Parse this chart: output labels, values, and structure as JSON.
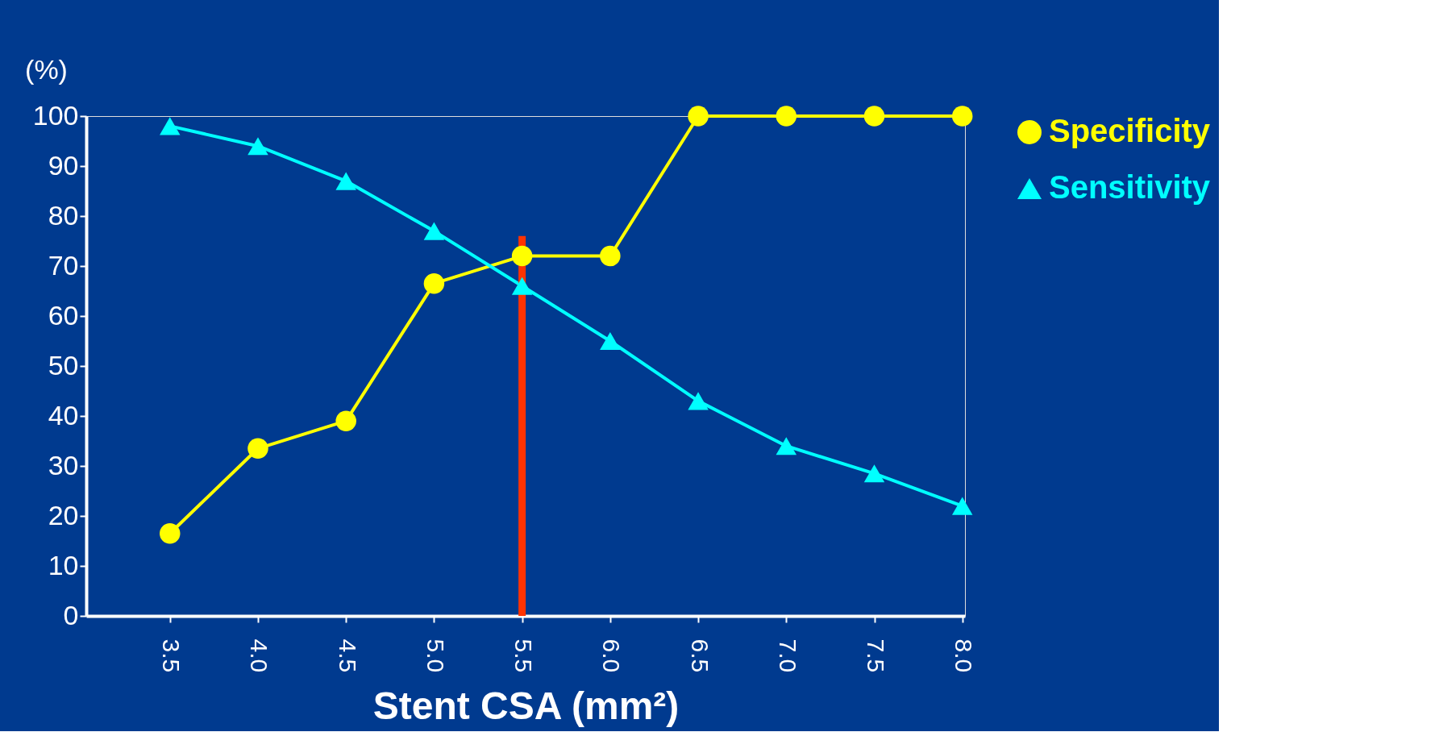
{
  "chart_data": {
    "type": "line",
    "xlabel": "Stent CSA (mm²)",
    "ylabel": "(%)",
    "categories": [
      "3.5",
      "4.0",
      "4.5",
      "5.0",
      "5.5",
      "6.0",
      "6.5",
      "7.0",
      "7.5",
      "8.0"
    ],
    "series": [
      {
        "name": "Specificity",
        "color": "#ffff00",
        "marker": "circle",
        "values": [
          16.5,
          33.5,
          39,
          66.5,
          72,
          72,
          100,
          100,
          100,
          100
        ]
      },
      {
        "name": "Sensitivity",
        "color": "#00ffff",
        "marker": "triangle",
        "values": [
          98,
          94,
          87,
          77,
          66,
          55,
          43,
          34,
          28.5,
          22
        ]
      }
    ],
    "ylim": [
      0,
      100
    ],
    "yticks": [
      0,
      10,
      20,
      30,
      40,
      50,
      60,
      70,
      80,
      90,
      100
    ],
    "ref_lines": [
      {
        "axis": "x",
        "value": "5.5",
        "color": "#ff3300"
      }
    ],
    "legend": "top right",
    "grid": false
  }
}
